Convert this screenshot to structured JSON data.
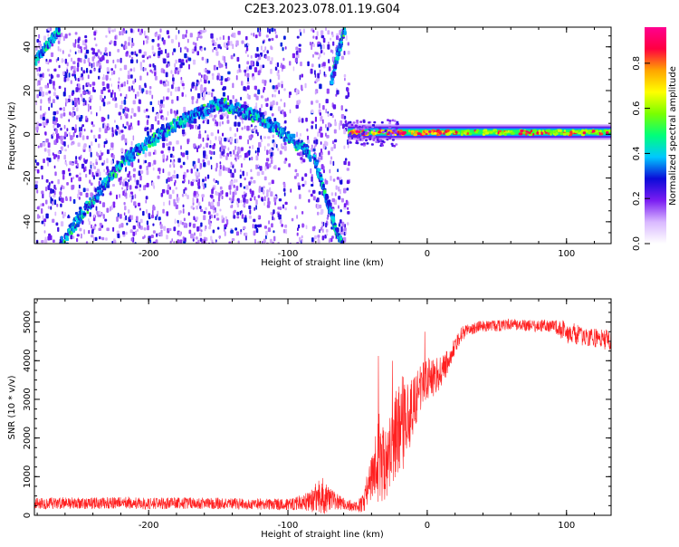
{
  "figure": {
    "title": "C2E3.2023.078.01.19.G04"
  },
  "chart_data": [
    {
      "type": "heatmap",
      "title": "C2E3.2023.078.01.19.G04",
      "xlabel": "Height of straight line (km)",
      "ylabel": "Frequency (Hz)",
      "xlim": [
        -282,
        132
      ],
      "ylim": [
        -50,
        49
      ],
      "xticks": [
        -200,
        -100,
        0,
        100
      ],
      "yticks": [
        -40,
        -20,
        0,
        20,
        40
      ],
      "colorbar": {
        "label": "Normalized spectral amplitude",
        "range": [
          0,
          0.96
        ],
        "ticks": [
          0.0,
          0.2,
          0.4,
          0.6,
          0.8
        ],
        "colormap": [
          "#ffffff",
          "#d9b8ff",
          "#7a1cf2",
          "#0b0bd8",
          "#00c8ff",
          "#00ff7a",
          "#7aff00",
          "#ffff00",
          "#ffa500",
          "#ff0040",
          "#ff0090"
        ]
      },
      "features": {
        "parabolic_trace": {
          "x": [
            -265,
            -240,
            -220,
            -200,
            -180,
            -160,
            -150,
            -130,
            -110,
            -95,
            -85
          ],
          "y": [
            -50,
            -28,
            -12,
            -2,
            6,
            12,
            15,
            11,
            4,
            -3,
            -8
          ]
        },
        "descending_trace": {
          "x": [
            -82,
            -75,
            -68,
            -62
          ],
          "y": [
            -10,
            -25,
            -40,
            -50
          ]
        },
        "upper_left_trace": {
          "x": [
            -282,
            -272,
            -265
          ],
          "y": [
            35,
            43,
            49
          ]
        },
        "upper_mid_trace": {
          "x": [
            -70,
            -65,
            -60
          ],
          "y": [
            25,
            38,
            49
          ]
        },
        "direct_signal_band": {
          "x_start": -57,
          "x_end": 132,
          "frequency_hz": 1
        }
      }
    },
    {
      "type": "line",
      "xlabel": "Height of straight line (km)",
      "ylabel": "SNR (10 * v/v)",
      "xlim": [
        -282,
        132
      ],
      "ylim": [
        0,
        5600
      ],
      "xticks": [
        -200,
        -100,
        0,
        100
      ],
      "yticks": [
        0,
        1000,
        2000,
        3000,
        4000,
        5000
      ],
      "series": [
        {
          "color": "#ff2020",
          "x": [
            -282,
            -260,
            -240,
            -220,
            -200,
            -180,
            -160,
            -140,
            -120,
            -100,
            -90,
            -80,
            -75,
            -70,
            -60,
            -50,
            -45,
            -40,
            -35,
            -30,
            -25,
            -20,
            -15,
            -10,
            -5,
            0,
            5,
            10,
            15,
            20,
            25,
            30,
            40,
            50,
            60,
            70,
            80,
            90,
            100,
            110,
            120,
            132
          ],
          "y": [
            300,
            320,
            310,
            330,
            300,
            320,
            310,
            300,
            290,
            280,
            330,
            450,
            500,
            400,
            300,
            200,
            500,
            900,
            1500,
            1400,
            1800,
            2400,
            2300,
            2800,
            3300,
            3500,
            3600,
            3700,
            4000,
            4400,
            4700,
            4800,
            4900,
            4900,
            4950,
            4900,
            4900,
            4900,
            4750,
            4650,
            4600,
            4550
          ],
          "noise_amplitude": [
            150,
            150,
            150,
            150,
            150,
            150,
            150,
            150,
            150,
            150,
            200,
            400,
            500,
            300,
            150,
            150,
            400,
            700,
            1200,
            1000,
            1000,
            1300,
            1200,
            700,
            600,
            600,
            500,
            400,
            300,
            200,
            200,
            150,
            150,
            150,
            150,
            150,
            150,
            150,
            300,
            250,
            250,
            300
          ]
        }
      ]
    }
  ]
}
